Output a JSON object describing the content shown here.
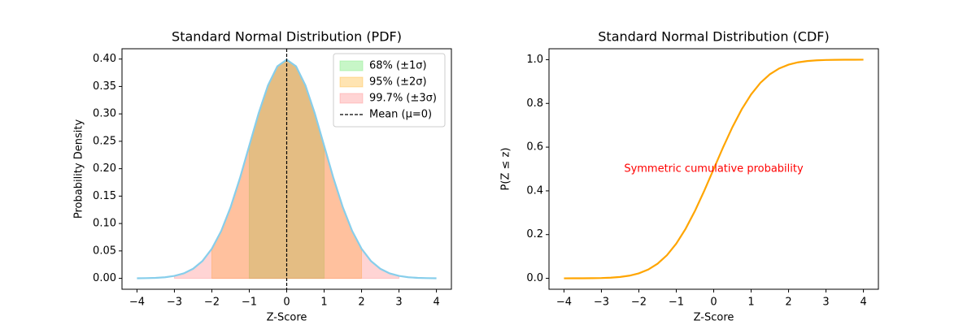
{
  "chart_data": [
    {
      "type": "line",
      "title": "Standard Normal Distribution (PDF)",
      "xlabel": "Z-Score",
      "ylabel": "Probability Density",
      "x": [
        -4,
        -3.75,
        -3.5,
        -3.25,
        -3,
        -2.75,
        -2.5,
        -2.25,
        -2,
        -1.75,
        -1.5,
        -1.25,
        -1,
        -0.75,
        -0.5,
        -0.25,
        0,
        0.25,
        0.5,
        0.75,
        1,
        1.25,
        1.5,
        1.75,
        2,
        2.25,
        2.5,
        2.75,
        3,
        3.25,
        3.5,
        3.75,
        4
      ],
      "values": [
        0.0001,
        0.0004,
        0.0009,
        0.002,
        0.0044,
        0.0091,
        0.0175,
        0.0317,
        0.054,
        0.0863,
        0.1295,
        0.1826,
        0.242,
        0.3011,
        0.3521,
        0.3867,
        0.3989,
        0.3867,
        0.3521,
        0.3011,
        0.242,
        0.1826,
        0.1295,
        0.0863,
        0.054,
        0.0317,
        0.0175,
        0.0091,
        0.0044,
        0.002,
        0.0009,
        0.0004,
        0.0001
      ],
      "color": "#87ceeb",
      "bands": [
        {
          "name": "68% (±1σ)",
          "range": [
            -1,
            1
          ],
          "color": "#90ee90",
          "opacity": 0.5
        },
        {
          "name": "95% (±2σ)",
          "range": [
            -2,
            2
          ],
          "color": "#ffa500",
          "opacity": 0.3
        },
        {
          "name": "99.7% (±3σ)",
          "range": [
            -3,
            3
          ],
          "color": "#ff7070",
          "opacity": 0.3
        }
      ],
      "vline": {
        "name": "Mean (μ=0)",
        "x": 0,
        "color": "#000000"
      },
      "legend": "upper right",
      "xlim": [
        -4.4,
        4.4
      ],
      "ylim": [
        -0.0199,
        0.4188
      ],
      "xticks": [
        {
          "value": -4,
          "label": "−4"
        },
        {
          "value": -3,
          "label": "−3"
        },
        {
          "value": -2,
          "label": "−2"
        },
        {
          "value": -1,
          "label": "−1"
        },
        0,
        1,
        2,
        3,
        4
      ],
      "yticks": [
        {
          "value": 0,
          "label": "0.00"
        },
        {
          "value": 0.05,
          "label": "0.05"
        },
        {
          "value": 0.1,
          "label": "0.10"
        },
        {
          "value": 0.15,
          "label": "0.15"
        },
        {
          "value": 0.2,
          "label": "0.20"
        },
        {
          "value": 0.25,
          "label": "0.25"
        },
        {
          "value": 0.3,
          "label": "0.30"
        },
        {
          "value": 0.35,
          "label": "0.35"
        },
        {
          "value": 0.4,
          "label": "0.40"
        }
      ]
    },
    {
      "type": "line",
      "title": "Standard Normal Distribution (CDF)",
      "xlabel": "Z-Score",
      "ylabel": "P(Z ≤ z)",
      "x": [
        -4,
        -3.75,
        -3.5,
        -3.25,
        -3,
        -2.75,
        -2.5,
        -2.25,
        -2,
        -1.75,
        -1.5,
        -1.25,
        -1,
        -0.75,
        -0.5,
        -0.25,
        0,
        0.25,
        0.5,
        0.75,
        1,
        1.25,
        1.5,
        1.75,
        2,
        2.25,
        2.5,
        2.75,
        3,
        3.25,
        3.5,
        3.75,
        4
      ],
      "values": [
        0,
        0.0001,
        0.0002,
        0.0006,
        0.0013,
        0.003,
        0.0062,
        0.0122,
        0.0228,
        0.0401,
        0.0668,
        0.1056,
        0.1587,
        0.2266,
        0.3085,
        0.4013,
        0.5,
        0.5987,
        0.6915,
        0.7734,
        0.8413,
        0.8944,
        0.9332,
        0.9599,
        0.9772,
        0.9878,
        0.9938,
        0.997,
        0.9987,
        0.9994,
        0.9998,
        0.9999,
        1
      ],
      "color": "#ffa500",
      "annotation": {
        "text": "Symmetric cumulative probability",
        "x": 0,
        "y": 0.5,
        "color": "#ff0000"
      },
      "xlim": [
        -4.4,
        4.4
      ],
      "ylim": [
        -0.05,
        1.05
      ],
      "xticks": [
        {
          "value": -4,
          "label": "−4"
        },
        {
          "value": -3,
          "label": "−3"
        },
        {
          "value": -2,
          "label": "−2"
        },
        {
          "value": -1,
          "label": "−1"
        },
        0,
        1,
        2,
        3,
        4
      ],
      "yticks": [
        {
          "value": 0,
          "label": "0.0"
        },
        0.2,
        0.4,
        0.6,
        0.8,
        {
          "value": 1,
          "label": "1.0"
        }
      ]
    }
  ]
}
